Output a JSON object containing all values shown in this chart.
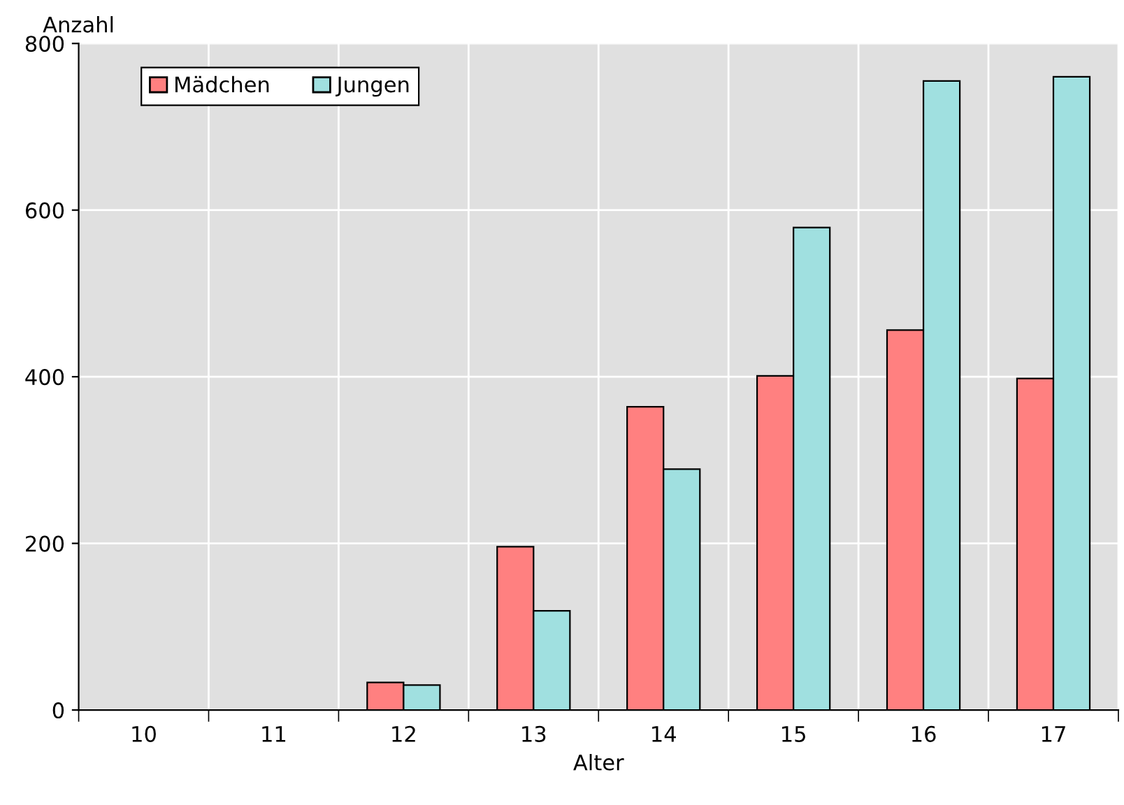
{
  "chart_data": {
    "type": "bar",
    "ylabel": "Anzahl",
    "xlabel": "Alter",
    "categories": [
      "10",
      "11",
      "12",
      "13",
      "14",
      "15",
      "16",
      "17"
    ],
    "series": [
      {
        "name": "Mädchen",
        "color": "#ff8080",
        "values": [
          null,
          null,
          33,
          196,
          364,
          401,
          456,
          398
        ]
      },
      {
        "name": "Jungen",
        "color": "#a0e0e0",
        "values": [
          null,
          null,
          30,
          119,
          289,
          579,
          755,
          760
        ]
      }
    ],
    "ylim": [
      0,
      800
    ],
    "yticks": [
      0,
      200,
      400,
      600,
      800
    ],
    "grid": true,
    "legend": "top left"
  }
}
